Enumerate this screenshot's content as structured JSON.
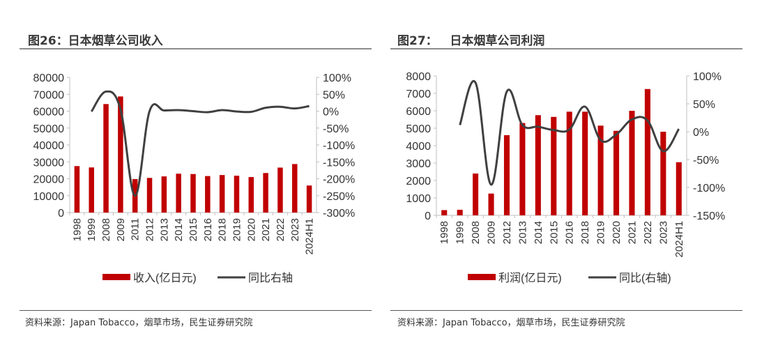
{
  "page": {
    "left": {
      "title": "图26：日本烟草公司收入",
      "source": "资料来源：Japan Tobacco，烟草市场，民生证券研究院"
    },
    "right": {
      "title": "图27：   日本烟草公司利润",
      "source": "资料来源：Japan Tobacco，烟草市场，民生证券研究院"
    }
  },
  "colors": {
    "bar": "#c00000",
    "line": "#404040",
    "axis": "#bfbfbf",
    "text": "#333333"
  },
  "chart_data": [
    {
      "type": "bar",
      "title": "图26：日本烟草公司收入",
      "categories": [
        "1998",
        "1999",
        "2008",
        "2009",
        "2011",
        "2012",
        "2013",
        "2014",
        "2015",
        "2016",
        "2018",
        "2019",
        "2020",
        "2021",
        "2022",
        "2023",
        "2024H1"
      ],
      "series": [
        {
          "name": "收入(亿日元)",
          "type": "bar",
          "axis": "left",
          "values": [
            27500,
            26700,
            64200,
            68700,
            19800,
            20500,
            21400,
            23000,
            22800,
            21600,
            22200,
            21800,
            21000,
            23400,
            26600,
            28700,
            16000
          ]
        },
        {
          "name": "同比右轴",
          "type": "line",
          "axis": "right",
          "values": [
            null,
            -1,
            58,
            5,
            -250,
            0,
            2,
            3,
            0,
            -3,
            3,
            -1,
            -2,
            10,
            13,
            8,
            15
          ]
        }
      ],
      "ylim_left": [
        0,
        80000
      ],
      "ylim_right": [
        -300,
        100
      ],
      "yticks_left": [
        "80000",
        "70000",
        "60000",
        "50000",
        "40000",
        "30000",
        "20000",
        "10000",
        "0"
      ],
      "yticks_right": [
        "100%",
        "50%",
        "0%",
        "-50%",
        "-100%",
        "-150%",
        "-200%",
        "-250%",
        "-300%"
      ],
      "legend": [
        "收入(亿日元)",
        "同比右轴"
      ],
      "legend_position": "bottom"
    },
    {
      "type": "bar",
      "title": "图27：   日本烟草公司利润",
      "categories": [
        "1998",
        "1999",
        "2008",
        "2009",
        "2012",
        "2013",
        "2014",
        "2015",
        "2016",
        "2018",
        "2019",
        "2020",
        "2021",
        "2022",
        "2023",
        "2024H1"
      ],
      "series": [
        {
          "name": "利润(亿日元)",
          "type": "bar",
          "axis": "left",
          "values": [
            300,
            320,
            2400,
            1250,
            4600,
            5300,
            5750,
            5650,
            5950,
            5950,
            5150,
            4850,
            6000,
            7250,
            4800,
            3050
          ]
        },
        {
          "name": "同比(右轴)",
          "type": "line",
          "axis": "right",
          "values": [
            null,
            12,
            88,
            -95,
            72,
            12,
            9,
            3,
            4,
            45,
            -15,
            -5,
            22,
            20,
            -35,
            5
          ]
        }
      ],
      "ylim_left": [
        0,
        8000
      ],
      "ylim_right": [
        -150,
        100
      ],
      "yticks_left": [
        "8000",
        "7000",
        "6000",
        "5000",
        "4000",
        "3000",
        "2000",
        "1000",
        "0"
      ],
      "yticks_right": [
        "100%",
        "50%",
        "0%",
        "-50%",
        "-100%",
        "-150%"
      ],
      "legend": [
        "利润(亿日元)",
        "同比(右轴)"
      ],
      "legend_position": "bottom"
    }
  ]
}
